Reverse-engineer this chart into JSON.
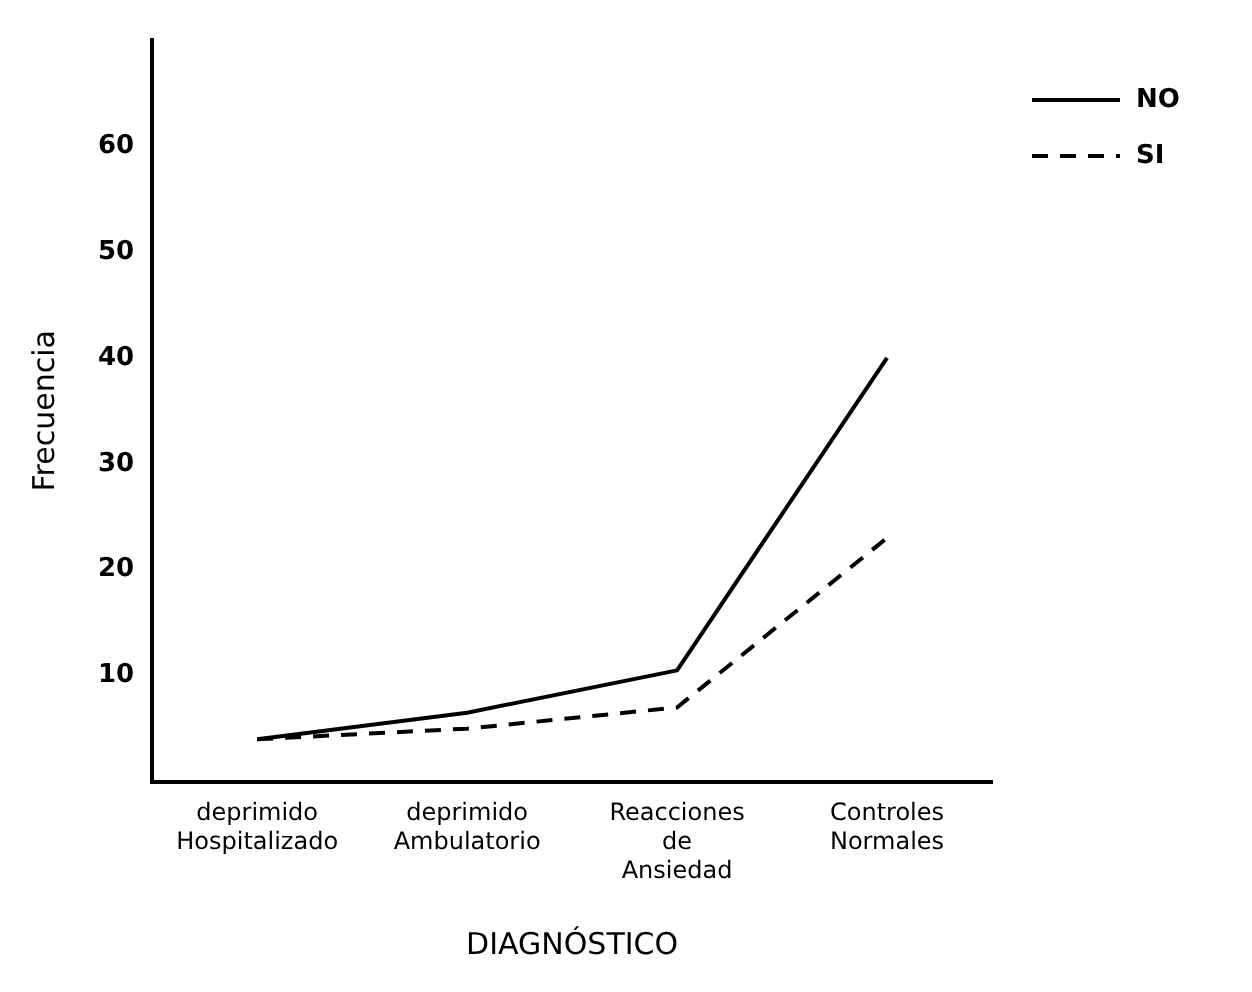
{
  "chart_data": {
    "type": "line",
    "xlabel": "DIAGNÓSTICO",
    "ylabel": "Frecuencia",
    "categories": [
      "deprimido Hospitalizado",
      "deprimido Ambulatorio",
      "Reacciones de Ansiedad",
      "Controles Normales"
    ],
    "series": [
      {
        "name": "NO",
        "color": "#000000",
        "line_style": "solid",
        "values": [
          4,
          6.5,
          10.5,
          40
        ]
      },
      {
        "name": "SI",
        "color": "#000000",
        "line_style": "dashed",
        "values": [
          4,
          5,
          7,
          23
        ]
      }
    ],
    "ylim": [
      0,
      70
    ],
    "yticks": [
      10,
      20,
      30,
      40,
      50,
      60
    ],
    "grid": false,
    "legend": "top right",
    "marker": "none"
  }
}
